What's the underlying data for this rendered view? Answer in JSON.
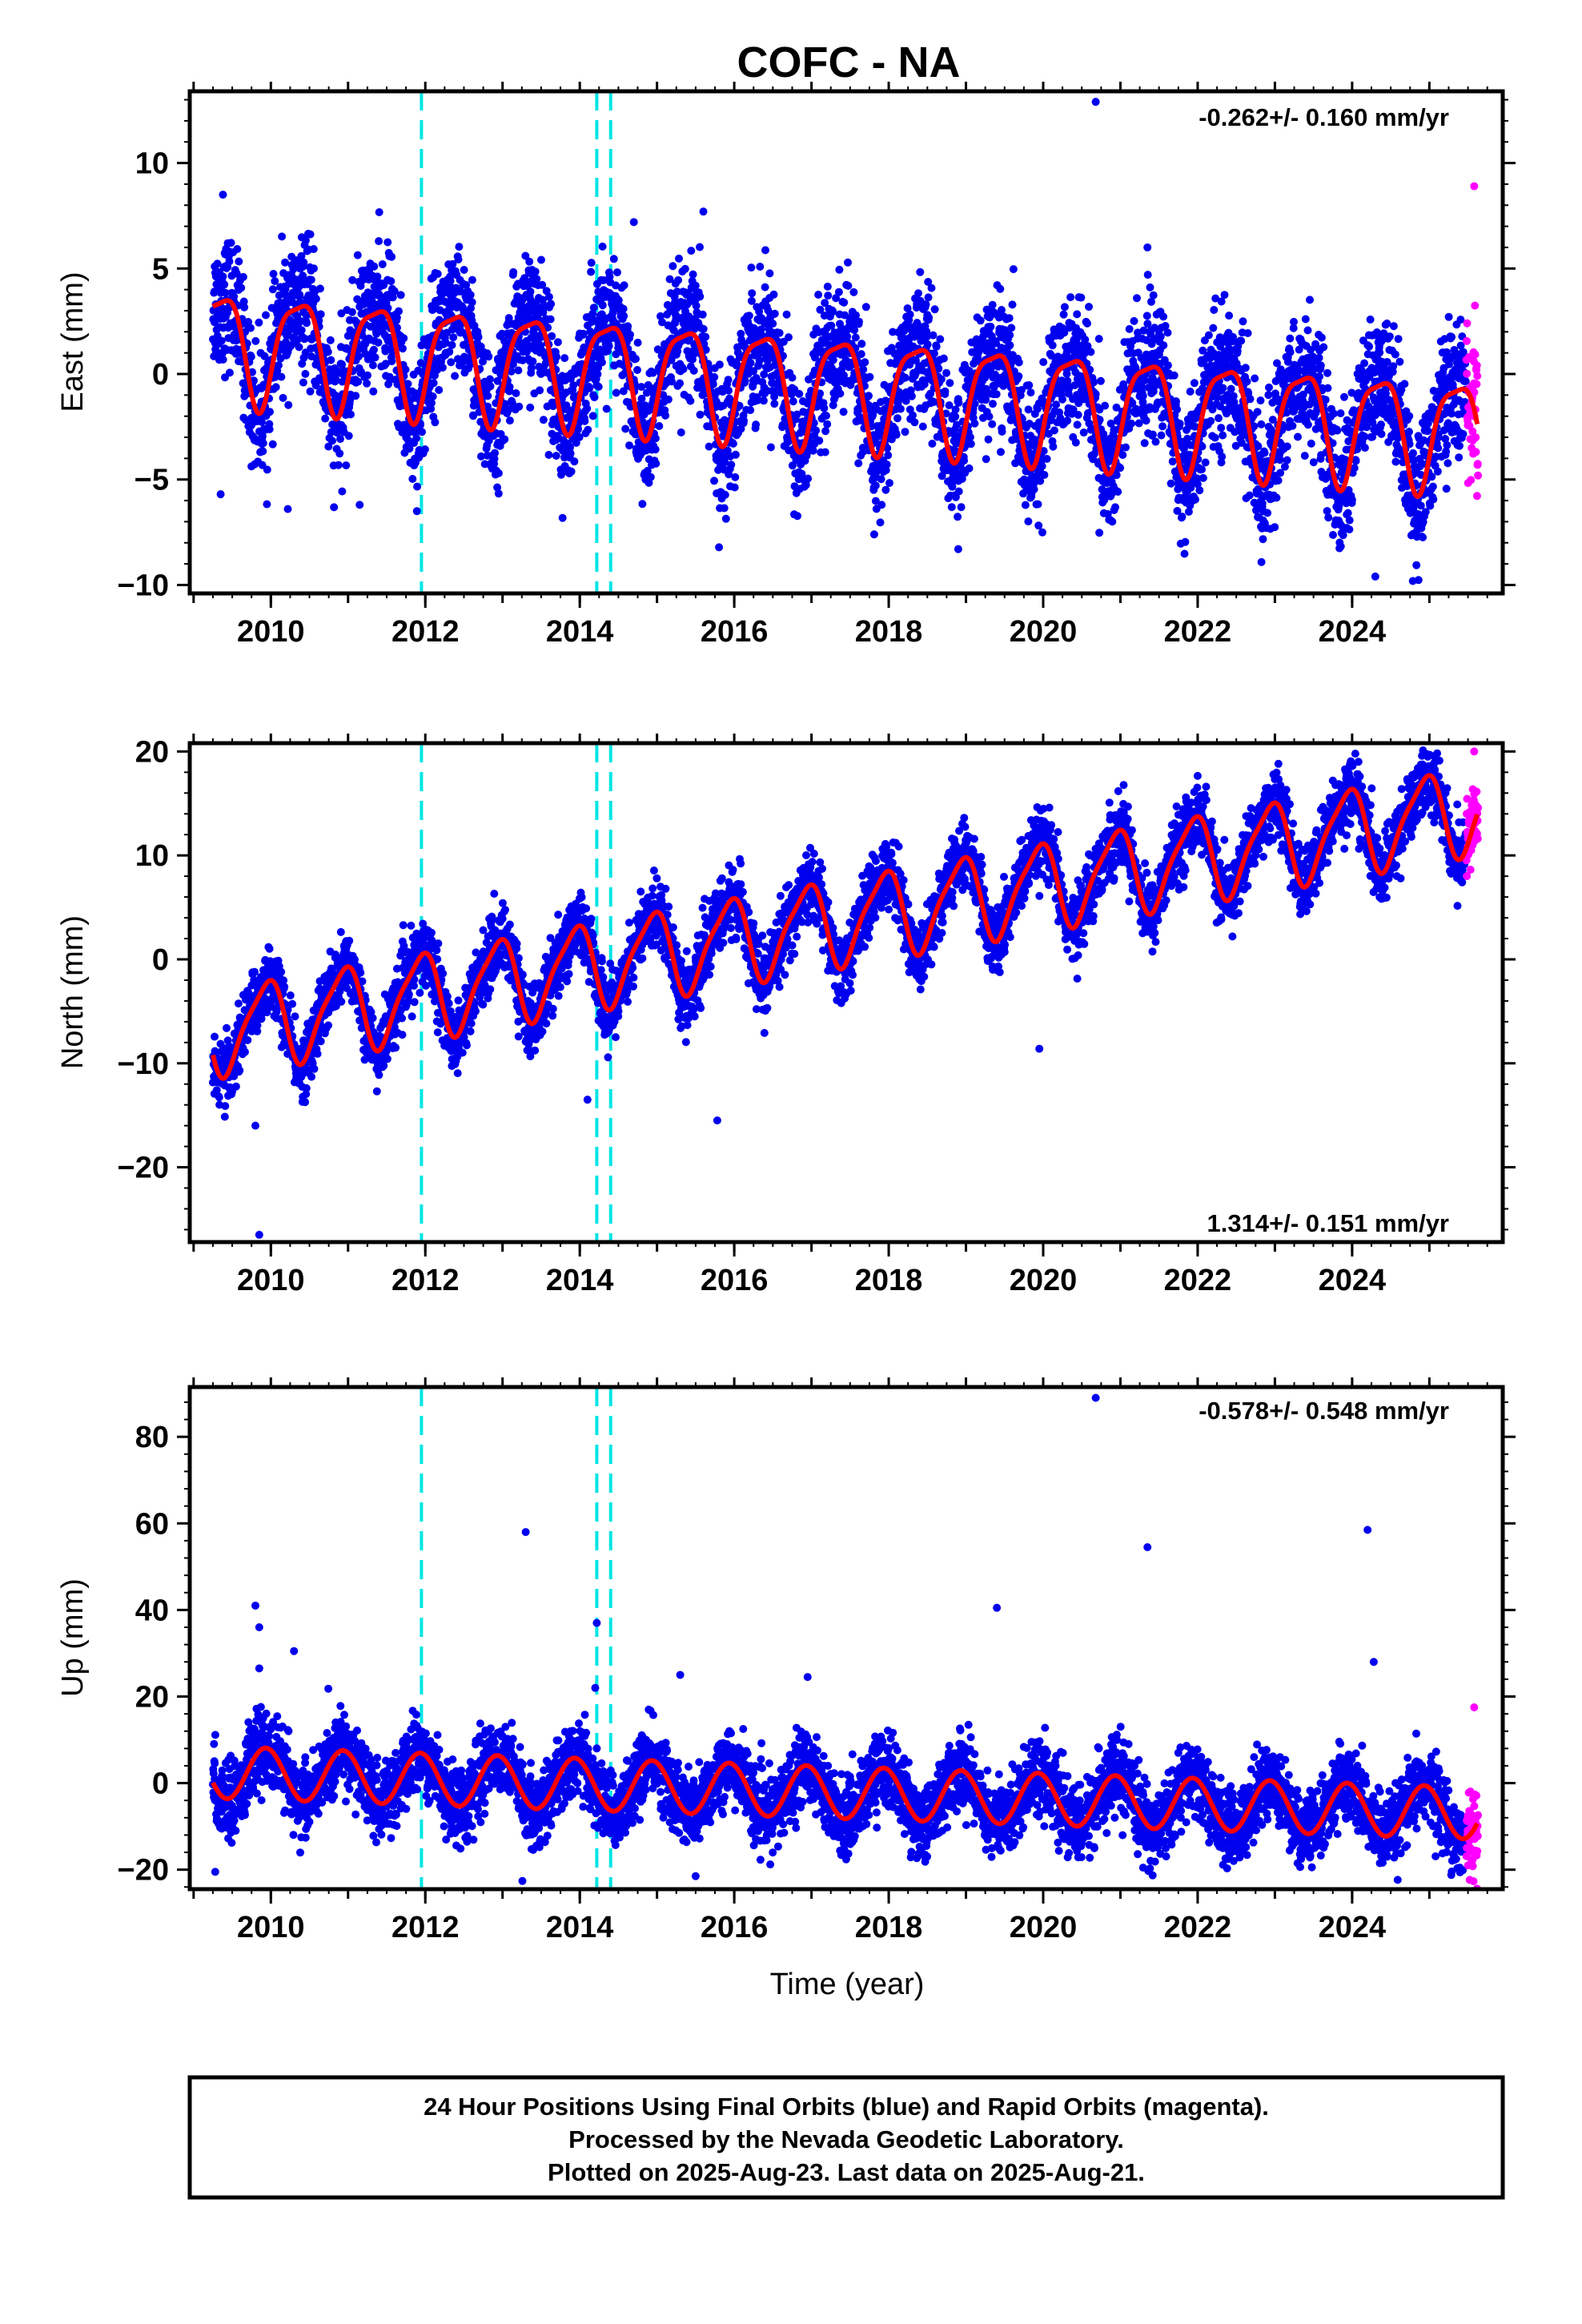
{
  "figure": {
    "title": "COFC - NA",
    "caption_lines": [
      "24 Hour Positions Using Final Orbits (blue) and Rapid Orbits (magenta).",
      "Processed by the Nevada Geodetic Laboratory.",
      "Plotted on 2025-Aug-23. Last data on 2025-Aug-21."
    ],
    "xlabel": "Time (year)"
  },
  "colors": {
    "final_orbits": "#0000ee",
    "rapid_orbits": "#ff00ff",
    "model_fit": "#ff0000",
    "events": "#00e5e5",
    "axes": "#000000"
  },
  "chart_data": [
    {
      "type": "scatter",
      "component": "east",
      "ylabel": "East (mm)",
      "rate_label": "-0.262+/- 0.160 mm/yr",
      "rate_position": "top-right",
      "xlim": [
        2008.95,
        2025.95
      ],
      "ylim": [
        -10.4,
        13.4
      ],
      "xticks": [
        2010,
        2012,
        2014,
        2016,
        2018,
        2020,
        2022,
        2024
      ],
      "yticks": [
        -10,
        -5,
        0,
        5,
        10
      ],
      "event_lines": [
        2011.95,
        2014.22,
        2014.4
      ],
      "model": {
        "name": "model fit",
        "start": 2009.25,
        "end": 2025.62,
        "offset": 1.5,
        "trend_mm_per_yr": -0.262,
        "annual_sin": 2.0,
        "annual_cos": -1.6,
        "semiannual_sin": 0.6,
        "semiannual_cos": 0.3,
        "noise_sd": 1.5
      },
      "series": [
        {
          "name": "Final Orbits",
          "x_range": [
            2009.25,
            2025.47
          ],
          "approx_points": 5400
        },
        {
          "name": "Rapid Orbits",
          "x_range": [
            2025.48,
            2025.63
          ],
          "approx_points": 50
        }
      ],
      "outliers": [
        {
          "x": 2009.38,
          "y": 8.5
        },
        {
          "x": 2009.35,
          "y": -5.7
        },
        {
          "x": 2010.22,
          "y": -6.4
        },
        {
          "x": 2011.15,
          "y": -6.2
        },
        {
          "x": 2018.9,
          "y": -8.3
        },
        {
          "x": 2020.68,
          "y": 12.9
        },
        {
          "x": 2024.3,
          "y": -9.6
        },
        {
          "x": 2021.35,
          "y": 6.0
        },
        {
          "x": 2025.58,
          "y": 8.9
        },
        {
          "x": 2015.6,
          "y": 7.7
        },
        {
          "x": 2014.7,
          "y": 7.2
        }
      ]
    },
    {
      "type": "scatter",
      "component": "north",
      "ylabel": "North (mm)",
      "rate_label": "1.314+/- 0.151 mm/yr",
      "rate_position": "bottom-right",
      "xlim": [
        2008.95,
        2025.95
      ],
      "ylim": [
        -27.2,
        20.8
      ],
      "xticks": [
        2010,
        2012,
        2014,
        2016,
        2018,
        2020,
        2022,
        2024
      ],
      "yticks": [
        -20,
        -10,
        0,
        10,
        20
      ],
      "event_lines": [
        2011.95,
        2014.22,
        2014.4
      ],
      "model": {
        "name": "model fit",
        "start": 2009.25,
        "end": 2025.62,
        "offset": -7.0,
        "trend_mm_per_yr": 1.314,
        "annual_sin": -1.8,
        "annual_cos": 3.6,
        "semiannual_sin": 0.8,
        "semiannual_cos": 0.4,
        "noise_sd": 1.6
      },
      "series": [
        {
          "name": "Final Orbits",
          "x_range": [
            2009.25,
            2025.47
          ],
          "approx_points": 5400
        },
        {
          "name": "Rapid Orbits",
          "x_range": [
            2025.48,
            2025.63
          ],
          "approx_points": 50
        }
      ],
      "outliers": [
        {
          "x": 2009.85,
          "y": -26.5
        },
        {
          "x": 2015.78,
          "y": -15.5
        },
        {
          "x": 2019.95,
          "y": -8.6
        },
        {
          "x": 2013.72,
          "y": 4.3
        },
        {
          "x": 2023.75,
          "y": 17.2
        },
        {
          "x": 2025.58,
          "y": 20.0
        },
        {
          "x": 2009.8,
          "y": -16.0
        },
        {
          "x": 2014.1,
          "y": -13.5
        }
      ]
    },
    {
      "type": "scatter",
      "component": "up",
      "ylabel": "Up (mm)",
      "rate_label": "-0.578+/- 0.548 mm/yr",
      "rate_position": "top-right",
      "xlim": [
        2008.95,
        2025.95
      ],
      "ylim": [
        -24.5,
        91.5
      ],
      "xticks": [
        2010,
        2012,
        2014,
        2016,
        2018,
        2020,
        2022,
        2024
      ],
      "yticks": [
        -20,
        0,
        20,
        40,
        60,
        80
      ],
      "event_lines": [
        2011.95,
        2014.22,
        2014.4
      ],
      "model": {
        "name": "model fit",
        "start": 2009.25,
        "end": 2025.62,
        "offset": 2.5,
        "trend_mm_per_yr": -0.578,
        "annual_sin": -2.4,
        "annual_cos": 5.5,
        "semiannual_sin": 0.0,
        "semiannual_cos": 0.0,
        "noise_sd": 4.2
      },
      "series": [
        {
          "name": "Final Orbits",
          "x_range": [
            2009.25,
            2025.47
          ],
          "approx_points": 5400
        },
        {
          "name": "Rapid Orbits",
          "x_range": [
            2025.48,
            2025.63
          ],
          "approx_points": 50
        }
      ],
      "outliers": [
        {
          "x": 2009.8,
          "y": 41.0
        },
        {
          "x": 2009.85,
          "y": 36.0
        },
        {
          "x": 2009.85,
          "y": 26.5
        },
        {
          "x": 2010.3,
          "y": 30.5
        },
        {
          "x": 2013.3,
          "y": 58.0
        },
        {
          "x": 2014.22,
          "y": 37.0
        },
        {
          "x": 2014.2,
          "y": 22.0
        },
        {
          "x": 2015.3,
          "y": 25.0
        },
        {
          "x": 2016.95,
          "y": 24.5
        },
        {
          "x": 2019.4,
          "y": 40.5
        },
        {
          "x": 2020.68,
          "y": 89.0
        },
        {
          "x": 2021.35,
          "y": 54.5
        },
        {
          "x": 2024.2,
          "y": 58.5
        },
        {
          "x": 2024.28,
          "y": 28.0
        },
        {
          "x": 2009.28,
          "y": -20.5
        },
        {
          "x": 2015.5,
          "y": -21.5
        },
        {
          "x": 2025.58,
          "y": 17.5
        }
      ]
    }
  ]
}
